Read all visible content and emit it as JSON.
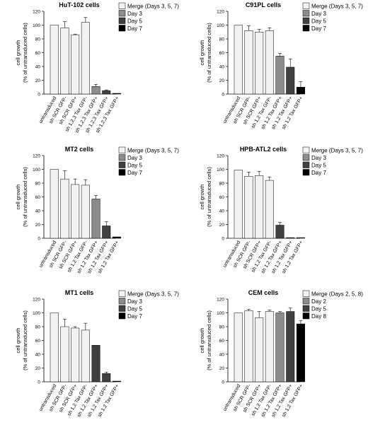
{
  "chart_data": [
    {
      "type": "bar",
      "title": "HuT-102 cells",
      "ylabel": [
        "cell growth",
        "(% of untransduced cells)"
      ],
      "ylim": [
        0,
        120
      ],
      "yticks": [
        0,
        20,
        40,
        60,
        80,
        100,
        120
      ],
      "categories": [
        "untransduced",
        "sh SCR GFP-",
        "sh SCR GFP+",
        "sh 1,2,3 Tax GFP-",
        "sh 1,2,3 Tax GFP+",
        "sh 1,2,3 Tax GFP+",
        "sh 1,2,3 Tax GFP+"
      ],
      "bar_series": [
        0,
        0,
        0,
        0,
        1,
        2,
        3
      ],
      "values": [
        100,
        96,
        86,
        104,
        11,
        5,
        1
      ],
      "errors": [
        0,
        9,
        1,
        7,
        3,
        1,
        0
      ],
      "legend": [
        "Merge (Days 3, 5, 7)",
        "Day 3",
        "Day 5",
        "Day 7"
      ],
      "colors": [
        "#f2f2f2",
        "#8c8c8c",
        "#404040",
        "#000000"
      ]
    },
    {
      "type": "bar",
      "title": "C91PL cells",
      "ylabel": [
        "cell growth",
        "(% of untransduced cells)"
      ],
      "ylim": [
        0,
        120
      ],
      "yticks": [
        0,
        20,
        40,
        60,
        80,
        100,
        120
      ],
      "categories": [
        "untransduced",
        "sh SCR GFP-",
        "sh SCR GFP+",
        "sh 1,2 Tax GFP-",
        "sh 1,2 Tax GFP+",
        "sh 1,2 Tax GFP+",
        "sh 1,2 Tax GFP+"
      ],
      "bar_series": [
        0,
        0,
        0,
        0,
        1,
        2,
        3
      ],
      "values": [
        100,
        92,
        90,
        92,
        55,
        39,
        10
      ],
      "errors": [
        0,
        7,
        4,
        4,
        4,
        12,
        8
      ],
      "legend": [
        "Merge (Days 3, 5, 7)",
        "Day 3",
        "Day 5",
        "Day 7"
      ],
      "colors": [
        "#f2f2f2",
        "#8c8c8c",
        "#404040",
        "#000000"
      ]
    },
    {
      "type": "bar",
      "title": "MT2 cells",
      "ylabel": [
        "cell growth",
        "(% of untransduced cells)"
      ],
      "ylim": [
        0,
        120
      ],
      "yticks": [
        0,
        20,
        40,
        60,
        80,
        100,
        120
      ],
      "categories": [
        "untransduced",
        "sh SCR GFP-",
        "sh SCR GFP+",
        "sh 1,2 Tax GFP-",
        "sh 1,2 Tax GFP+",
        "sh 1,2 Tax GFP+",
        "sh 1,2 Tax GFP+"
      ],
      "bar_series": [
        0,
        0,
        0,
        0,
        1,
        2,
        3
      ],
      "values": [
        100,
        86,
        78,
        77,
        57,
        18,
        2
      ],
      "errors": [
        0,
        12,
        8,
        8,
        5,
        6,
        0
      ],
      "legend": [
        "Merge (Days 3, 5, 7)",
        "Day 3",
        "Day 5",
        "Day 7"
      ],
      "colors": [
        "#f2f2f2",
        "#8c8c8c",
        "#404040",
        "#000000"
      ]
    },
    {
      "type": "bar",
      "title": "HPB-ATL2 cells",
      "ylabel": [
        "cell growth",
        "(% of untransduced cells)"
      ],
      "ylim": [
        0,
        120
      ],
      "yticks": [
        0,
        20,
        40,
        60,
        80,
        100,
        120
      ],
      "categories": [
        "untransduced",
        "sh SCR GFP-",
        "sh SCR GFP+",
        "sh 1,2 Tax GFP-",
        "sh 1,2 Tax GFP+",
        "sh 1,2 Tax GFP+",
        "sh 1,2 Tax GFP+"
      ],
      "bar_series": [
        0,
        0,
        0,
        0,
        2,
        2,
        2
      ],
      "values": [
        99,
        90,
        91,
        84,
        19,
        1,
        1
      ],
      "errors": [
        0,
        6,
        6,
        5,
        4,
        0,
        0
      ],
      "legend": [
        "Merge (Days 3, 5, 7)",
        "Day 3",
        "Day 5",
        "Day 7"
      ],
      "colors": [
        "#f2f2f2",
        "#8c8c8c",
        "#404040",
        "#000000"
      ]
    },
    {
      "type": "bar",
      "title": "MT1 cells",
      "ylabel": [
        "cell growth",
        "(% of untransduced cells)"
      ],
      "ylim": [
        0,
        120
      ],
      "yticks": [
        0,
        20,
        40,
        60,
        80,
        100,
        120
      ],
      "categories": [
        "untransduced",
        "sh SCR GFP-",
        "sh SCR GFP+",
        "sh 1,2 Tax GFP-",
        "sh 1,2 Tax GFP+",
        "sh 1,2 Tax GFP+",
        "sh 1,2 Tax GFP+"
      ],
      "bar_series": [
        0,
        0,
        0,
        0,
        2,
        2,
        3
      ],
      "values": [
        100,
        80,
        78,
        75,
        53,
        12,
        1
      ],
      "errors": [
        0,
        11,
        2,
        10,
        0,
        2,
        0
      ],
      "legend": [
        "Merge (Days 3, 5, 7)",
        "Day 3",
        "Day 5",
        "Day 7"
      ],
      "colors": [
        "#f2f2f2",
        "#8c8c8c",
        "#404040",
        "#000000"
      ]
    },
    {
      "type": "bar",
      "title": "CEM cells",
      "ylabel": [
        "cell growth",
        "(% of untransduced cells)"
      ],
      "ylim": [
        0,
        120
      ],
      "yticks": [
        0,
        20,
        40,
        60,
        80,
        100,
        120
      ],
      "categories": [
        "untransduced",
        "sh SCR GFP-",
        "sh SCR GFP+",
        "sh 1,2 Tax GFP-",
        "sh 1,2 Tax GFP+",
        "sh 1,2 Tax GFP+",
        "sh 1,2 Tax GFP+"
      ],
      "bar_series": [
        0,
        0,
        0,
        0,
        1,
        2,
        3
      ],
      "values": [
        100,
        103,
        93,
        102,
        100,
        102,
        84
      ],
      "errors": [
        0,
        2,
        9,
        2,
        2,
        5,
        5
      ],
      "legend": [
        "Merge (Days 2, 5, 8)",
        "Day 2",
        "Day 5",
        "Day 8"
      ],
      "colors": [
        "#f2f2f2",
        "#8c8c8c",
        "#404040",
        "#000000"
      ]
    }
  ]
}
